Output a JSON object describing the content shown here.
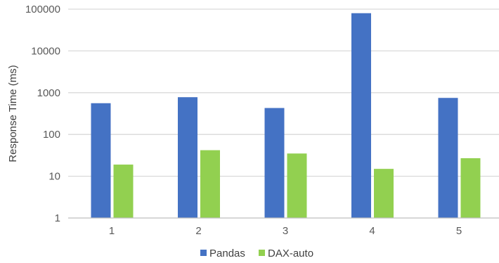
{
  "chart_data": {
    "type": "bar",
    "title": "",
    "xlabel": "",
    "ylabel": "Response Time (ms)",
    "yscale": "log",
    "ylim": [
      1,
      100000
    ],
    "ytick_labels": [
      "1",
      "10",
      "100",
      "1000",
      "10000",
      "100000"
    ],
    "ytick_values": [
      1,
      10,
      100,
      1000,
      10000,
      100000
    ],
    "grid": "horizontal",
    "legend_position": "bottom-center",
    "categories": [
      "1",
      "2",
      "3",
      "4",
      "5"
    ],
    "series": [
      {
        "name": "Pandas",
        "color": "#4472c4",
        "values": [
          560,
          780,
          430,
          80000,
          750
        ]
      },
      {
        "name": "DAX-auto",
        "color": "#92d050",
        "values": [
          19,
          42,
          35,
          15,
          27
        ]
      }
    ]
  }
}
